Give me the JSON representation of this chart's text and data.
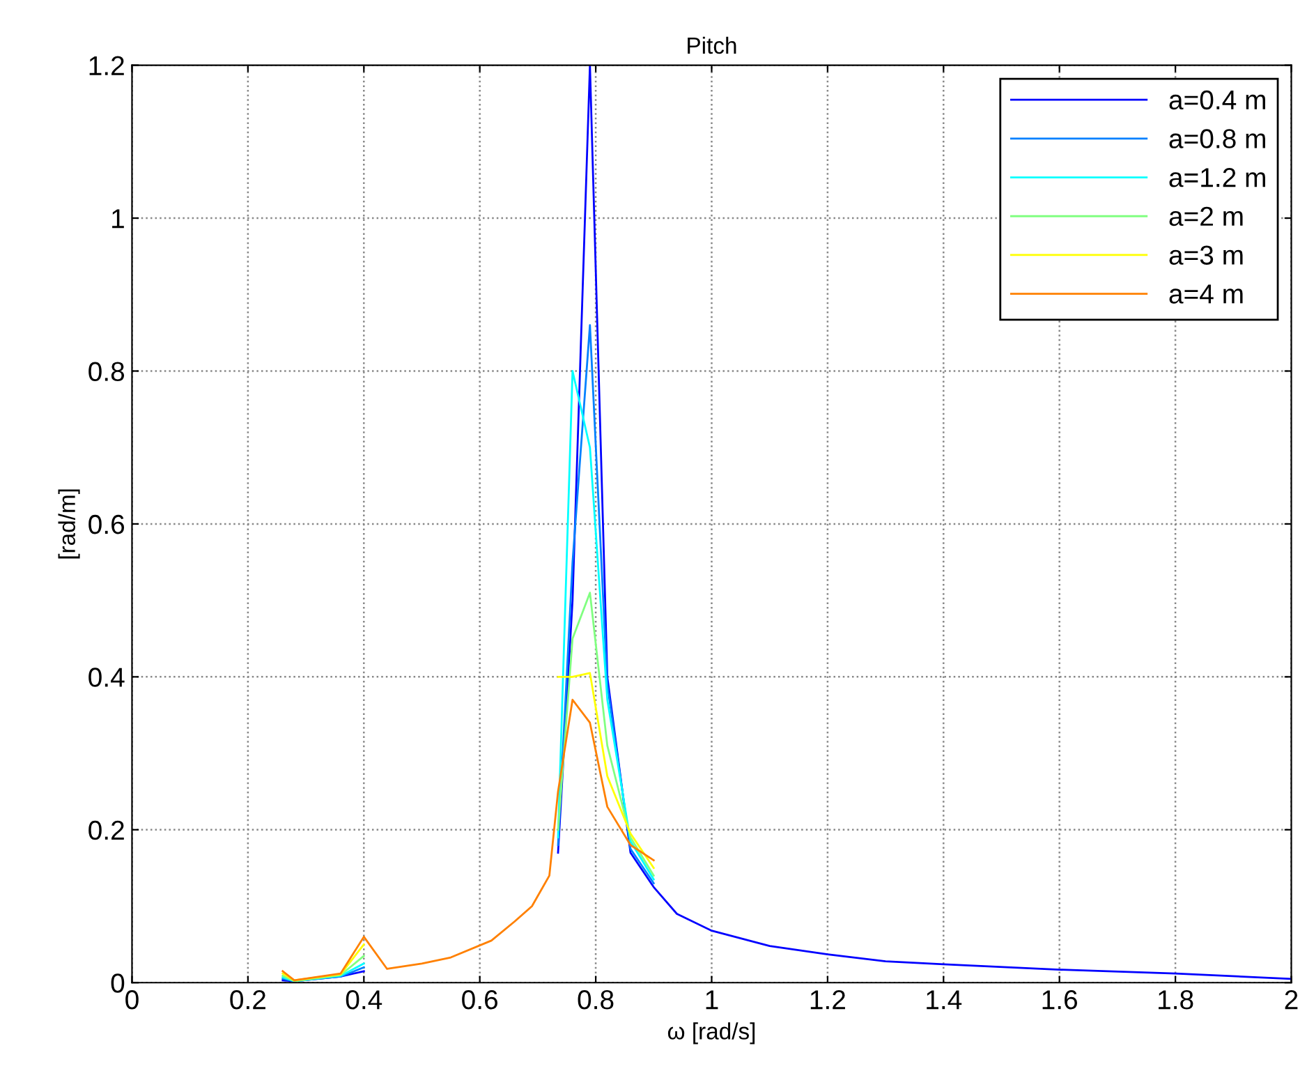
{
  "chart_data": {
    "type": "line",
    "title": "Pitch",
    "xlabel": "ω [rad/s]",
    "ylabel": "[rad/m]",
    "x": [
      0.26,
      0.28,
      0.36,
      0.4,
      0.44,
      0.5,
      0.55,
      0.62,
      0.66,
      0.69,
      0.72,
      0.735,
      0.76,
      0.79,
      0.82,
      0.86,
      0.9,
      0.94,
      1.0,
      1.1,
      1.2,
      1.3,
      1.4,
      1.6,
      1.8,
      2.0
    ],
    "series": [
      {
        "name": "a=0.4 m",
        "color": "#0000ff",
        "values": [
          0.003,
          0.002,
          0.008,
          0.015,
          null,
          null,
          null,
          null,
          null,
          null,
          null,
          0.17,
          0.5,
          1.2,
          0.4,
          0.17,
          0.125,
          0.09,
          0.068,
          0.048,
          0.037,
          0.028,
          0.024,
          0.017,
          0.012,
          0.005
        ]
      },
      {
        "name": "a=0.8 m",
        "color": "#0080ff",
        "values": [
          0.005,
          0.002,
          0.008,
          0.02,
          null,
          null,
          null,
          null,
          null,
          null,
          null,
          0.18,
          0.55,
          0.86,
          0.39,
          0.175,
          0.13,
          null,
          null,
          null,
          null,
          null,
          null,
          null,
          null,
          null
        ]
      },
      {
        "name": "a=1.2 m",
        "color": "#00ffff",
        "values": [
          0.007,
          0.002,
          0.009,
          0.025,
          null,
          null,
          null,
          null,
          null,
          null,
          null,
          0.19,
          0.8,
          0.7,
          0.37,
          0.185,
          0.135,
          null,
          null,
          null,
          null,
          null,
          null,
          null,
          null,
          null
        ]
      },
      {
        "name": "a=2 m",
        "color": "#80ff80",
        "values": [
          0.009,
          0.002,
          0.01,
          0.035,
          null,
          null,
          null,
          null,
          null,
          null,
          null,
          0.2,
          0.45,
          0.51,
          0.31,
          0.19,
          0.14,
          null,
          null,
          null,
          null,
          null,
          null,
          null,
          null,
          null
        ]
      },
      {
        "name": "a=3 m",
        "color": "#ffff00",
        "values": [
          0.012,
          0.003,
          0.011,
          0.05,
          null,
          null,
          null,
          null,
          null,
          null,
          null,
          0.4,
          0.4,
          0.405,
          0.27,
          0.195,
          0.15,
          null,
          null,
          null,
          null,
          null,
          null,
          null,
          null,
          null
        ]
      },
      {
        "name": "a=4 m",
        "color": "#ff8000",
        "values": [
          0.015,
          0.003,
          0.012,
          0.06,
          0.018,
          0.025,
          0.033,
          0.055,
          0.08,
          0.1,
          0.14,
          0.25,
          0.37,
          0.34,
          0.23,
          0.18,
          0.16,
          null,
          null,
          null,
          null,
          null,
          null,
          null,
          null,
          null
        ]
      }
    ],
    "xlim": [
      0,
      2
    ],
    "xticks": [
      0,
      0.2,
      0.4,
      0.6,
      0.8,
      1,
      1.2,
      1.4,
      1.6,
      1.8,
      2
    ],
    "ylim": [
      0,
      1.2
    ],
    "yticks": [
      0,
      0.2,
      0.4,
      0.6,
      0.8,
      1,
      1.2
    ],
    "grid": true,
    "legend": "top right",
    "line_style": "solid",
    "marker": "none"
  }
}
